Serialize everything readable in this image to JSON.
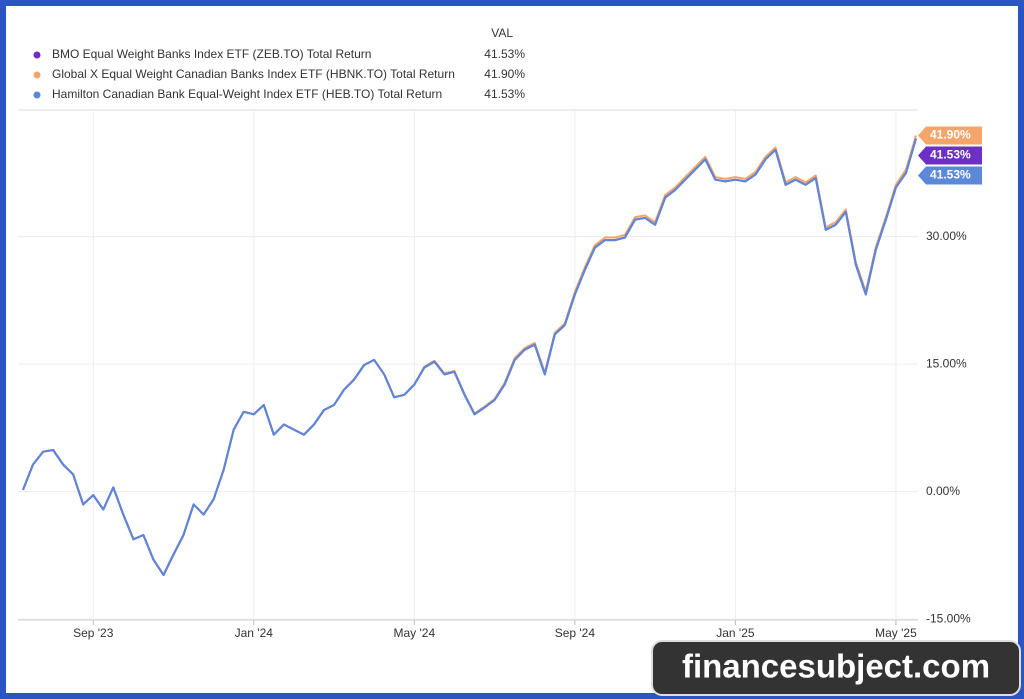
{
  "chart_data": {
    "type": "line",
    "legend_header": "VAL",
    "watermark": "financesubject.com",
    "categories": [
      null,
      null,
      null,
      null,
      null,
      null,
      null,
      "Sep '23",
      null,
      null,
      null,
      null,
      null,
      null,
      null,
      null,
      null,
      null,
      null,
      null,
      null,
      null,
      null,
      "Jan '24",
      null,
      null,
      null,
      null,
      null,
      null,
      null,
      null,
      null,
      null,
      null,
      null,
      null,
      null,
      null,
      "May '24",
      null,
      null,
      null,
      null,
      null,
      null,
      null,
      null,
      null,
      null,
      null,
      null,
      null,
      null,
      null,
      "Sep '24",
      null,
      null,
      null,
      null,
      null,
      null,
      null,
      null,
      null,
      null,
      null,
      null,
      null,
      null,
      null,
      "Jan '25",
      null,
      null,
      null,
      null,
      null,
      null,
      null,
      null,
      null,
      null,
      null,
      null,
      null,
      null,
      null,
      "May '25",
      null,
      null
    ],
    "series": [
      {
        "name": "Global X Equal Weight Canadian Banks Index ETF (HBNK.TO) Total Return",
        "color": "#f5a46a",
        "value_label": "41.90%",
        "values": [
          0.2,
          3.2,
          4.7,
          4.9,
          3.2,
          2.0,
          -1.5,
          -0.4,
          -2.1,
          0.5,
          -2.7,
          -5.6,
          -5.1,
          -8.0,
          -9.8,
          -7.4,
          -5.1,
          -1.5,
          -2.7,
          -0.9,
          2.6,
          7.3,
          9.4,
          9.1,
          10.2,
          6.7,
          7.9,
          7.3,
          6.7,
          7.9,
          9.6,
          10.2,
          12.0,
          13.2,
          14.9,
          15.5,
          13.8,
          11.1,
          11.4,
          12.6,
          14.7,
          15.4,
          13.9,
          14.2,
          11.5,
          9.2,
          10.0,
          10.9,
          12.8,
          15.7,
          16.9,
          17.5,
          14.0,
          18.7,
          19.8,
          23.5,
          26.4,
          29.0,
          29.9,
          29.9,
          30.2,
          32.3,
          32.5,
          31.7,
          34.9,
          35.8,
          37.0,
          38.2,
          39.4,
          37.0,
          36.8,
          37.0,
          36.8,
          37.6,
          39.4,
          40.5,
          36.4,
          37.0,
          36.4,
          37.2,
          31.1,
          31.7,
          33.2,
          27.0,
          23.5,
          28.8,
          32.3,
          36.1,
          37.9,
          41.9
        ]
      },
      {
        "name": "BMO Equal Weight Banks Index ETF (ZEB.TO) Total Return",
        "color": "#6d2fc4",
        "value_label": "41.53%",
        "values": [
          0.2,
          3.2,
          4.7,
          4.9,
          3.2,
          2.0,
          -1.5,
          -0.4,
          -2.1,
          0.5,
          -2.7,
          -5.6,
          -5.1,
          -8.0,
          -9.8,
          -7.4,
          -5.1,
          -1.5,
          -2.7,
          -0.9,
          2.6,
          7.3,
          9.4,
          9.1,
          10.2,
          6.7,
          7.9,
          7.3,
          6.7,
          7.9,
          9.6,
          10.2,
          12.0,
          13.2,
          14.9,
          15.5,
          13.8,
          11.1,
          11.4,
          12.6,
          14.6,
          15.3,
          13.8,
          14.1,
          11.4,
          9.1,
          9.9,
          10.8,
          12.6,
          15.5,
          16.7,
          17.3,
          13.8,
          18.5,
          19.6,
          23.2,
          26.1,
          28.7,
          29.6,
          29.6,
          29.9,
          32.0,
          32.2,
          31.4,
          34.6,
          35.5,
          36.7,
          37.9,
          39.1,
          36.7,
          36.5,
          36.7,
          36.5,
          37.3,
          39.1,
          40.2,
          36.1,
          36.7,
          36.1,
          36.9,
          30.8,
          31.4,
          32.9,
          26.7,
          23.2,
          28.5,
          32.0,
          35.8,
          37.5,
          41.53
        ]
      },
      {
        "name": "Hamilton Canadian Bank Equal-Weight Index ETF (HEB.TO) Total Return",
        "color": "#5b88d8",
        "value_label": "41.53%",
        "values": [
          0.2,
          3.2,
          4.7,
          4.9,
          3.2,
          2.0,
          -1.5,
          -0.4,
          -2.1,
          0.5,
          -2.7,
          -5.6,
          -5.1,
          -8.0,
          -9.8,
          -7.4,
          -5.1,
          -1.5,
          -2.7,
          -0.9,
          2.6,
          7.3,
          9.4,
          9.1,
          10.2,
          6.7,
          7.9,
          7.3,
          6.7,
          7.9,
          9.6,
          10.2,
          12.0,
          13.2,
          14.9,
          15.5,
          13.8,
          11.1,
          11.4,
          12.6,
          14.6,
          15.3,
          13.8,
          14.1,
          11.4,
          9.1,
          9.9,
          10.8,
          12.6,
          15.5,
          16.7,
          17.3,
          13.8,
          18.5,
          19.6,
          23.2,
          26.1,
          28.7,
          29.6,
          29.6,
          29.9,
          32.0,
          32.2,
          31.4,
          34.6,
          35.5,
          36.7,
          37.9,
          39.1,
          36.7,
          36.5,
          36.7,
          36.5,
          37.3,
          39.1,
          40.2,
          36.1,
          36.7,
          36.1,
          36.9,
          30.8,
          31.4,
          32.9,
          26.7,
          23.2,
          28.5,
          32.0,
          35.8,
          37.5,
          41.53
        ]
      }
    ],
    "legend_order": [
      1,
      0,
      2
    ],
    "ylim": [
      -15.1,
      44.9
    ],
    "yticks": [
      {
        "value": -15,
        "label": "-15.00%"
      },
      {
        "value": 0,
        "label": "0.00%"
      },
      {
        "value": 15,
        "label": "15.00%"
      },
      {
        "value": 30,
        "label": "30.00%"
      }
    ],
    "grid": true
  }
}
